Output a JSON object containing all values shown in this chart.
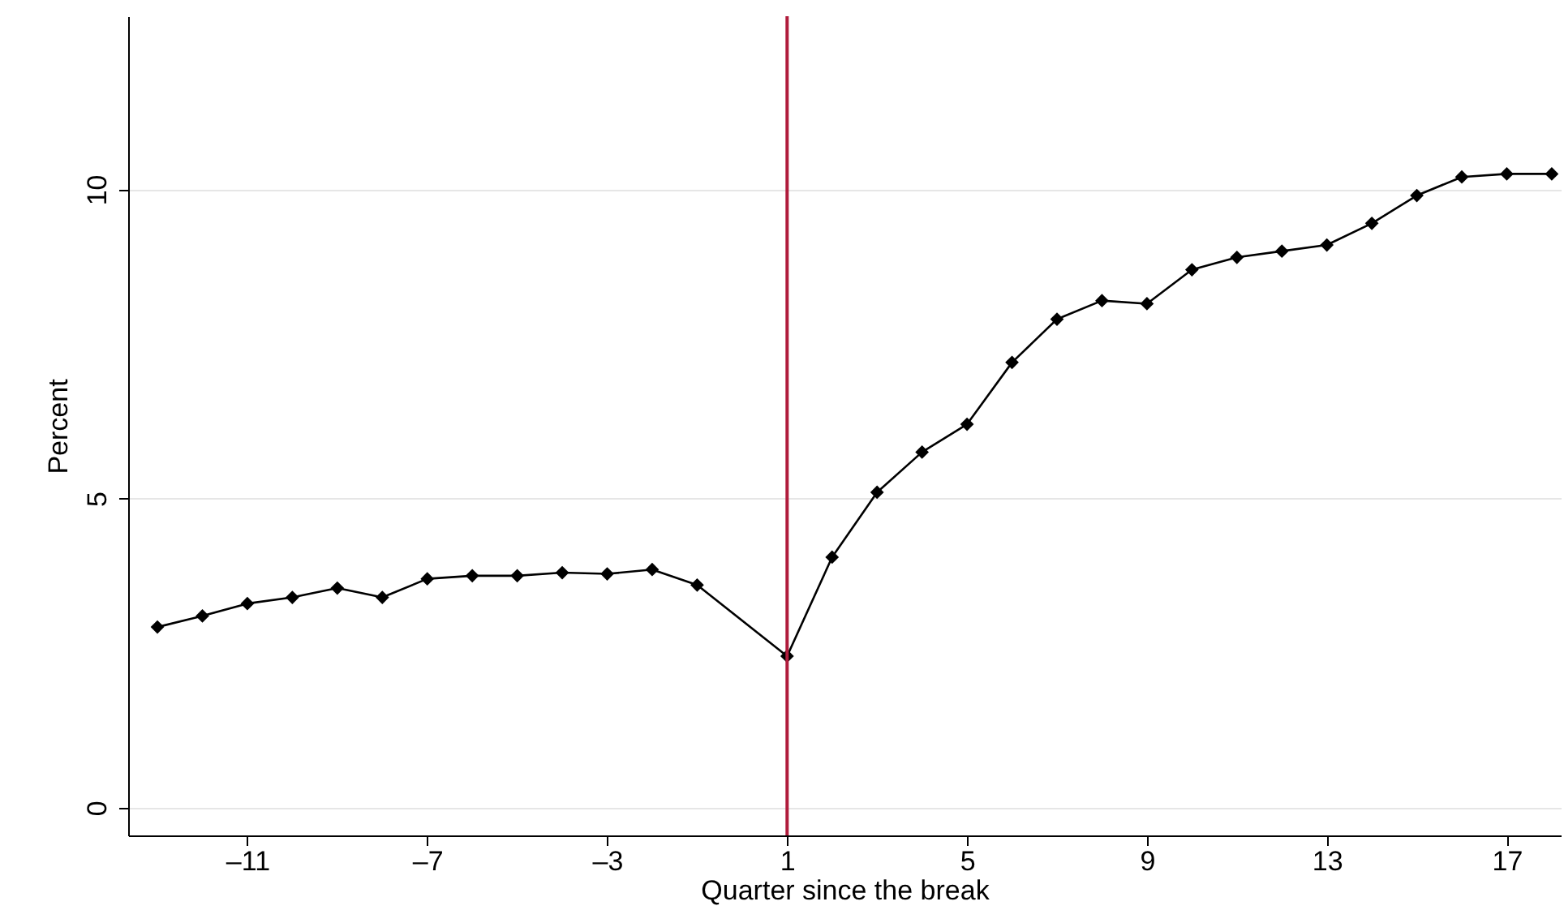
{
  "chart_data": {
    "type": "line",
    "xlabel": "Quarter since the break",
    "ylabel": "Percent",
    "x": [
      -13,
      -12,
      -11,
      -10,
      -9,
      -8,
      -7,
      -6,
      -5,
      -4,
      -3,
      -2,
      -1,
      1,
      2,
      3,
      4,
      5,
      6,
      7,
      8,
      9,
      10,
      11,
      12,
      13,
      14,
      15,
      16,
      17,
      18
    ],
    "series": [
      {
        "color": "#000000",
        "values": [
          2.92,
          3.1,
          3.3,
          3.4,
          3.55,
          3.4,
          3.7,
          3.75,
          3.75,
          3.8,
          3.78,
          3.85,
          3.6,
          2.45,
          4.05,
          5.1,
          5.75,
          6.2,
          7.2,
          7.9,
          8.2,
          8.15,
          8.7,
          8.9,
          9.0,
          9.1,
          9.45,
          9.9,
          10.2,
          10.25,
          10.25
        ]
      }
    ],
    "xlim": [
      -13.65,
      18.2
    ],
    "xticks": [
      {
        "value": -11,
        "label": "–11"
      },
      {
        "value": -7,
        "label": "–7"
      },
      {
        "value": -3,
        "label": "–3"
      },
      1,
      5,
      9,
      13,
      17
    ],
    "ylim": [
      -0.45,
      12.8
    ],
    "yticks": [
      0,
      5,
      10
    ],
    "grid": "y",
    "marker": "diamond",
    "line_style": "solid",
    "ref_lines": [
      {
        "axis": "x",
        "value": 1,
        "color": "#b01c3c"
      }
    ]
  }
}
